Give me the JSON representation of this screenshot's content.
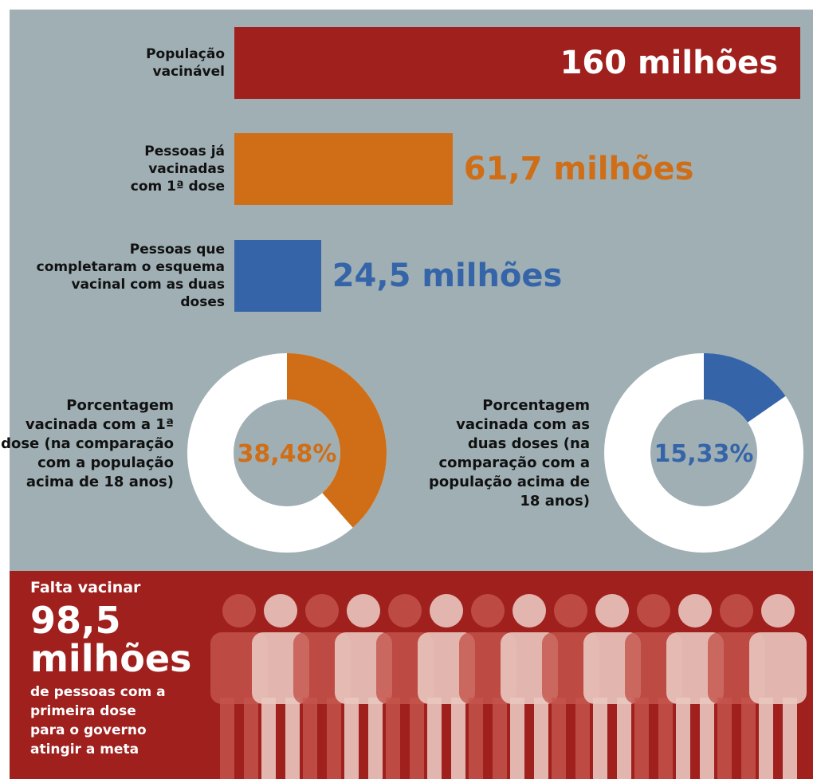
{
  "chart_data": [
    {
      "type": "bar",
      "orientation": "horizontal",
      "categories": [
        "População vacinável",
        "Pessoas já vacinadas com 1ª dose",
        "Pessoas que completaram o esquema vacinal com as duas doses"
      ],
      "values": [
        160,
        61.7,
        24.5
      ],
      "value_labels": [
        "160 milhões",
        "61,7 milhões",
        "24,5 milhões"
      ],
      "colors": [
        "#a0201e",
        "#cf6e16",
        "#3565a8"
      ]
    },
    {
      "type": "donut",
      "label": "Porcentagem vacinada com a 1ª dose (na comparação com a população acima de 18 anos)",
      "values": [
        38.48
      ],
      "value_labels": [
        "38,48%"
      ],
      "color": "#cf6e16"
    },
    {
      "type": "donut",
      "label": "Porcentagem vacinada com as duas doses (na comparação com a população acima de 18 anos)",
      "values": [
        15.33
      ],
      "value_labels": [
        "15,33%"
      ],
      "color": "#3565a8"
    }
  ],
  "panel": {
    "intro": "Falta vacinar",
    "amount": "98,5 milhões",
    "text": "de pessoas com a primeira dose para o governo atingir a meta"
  }
}
